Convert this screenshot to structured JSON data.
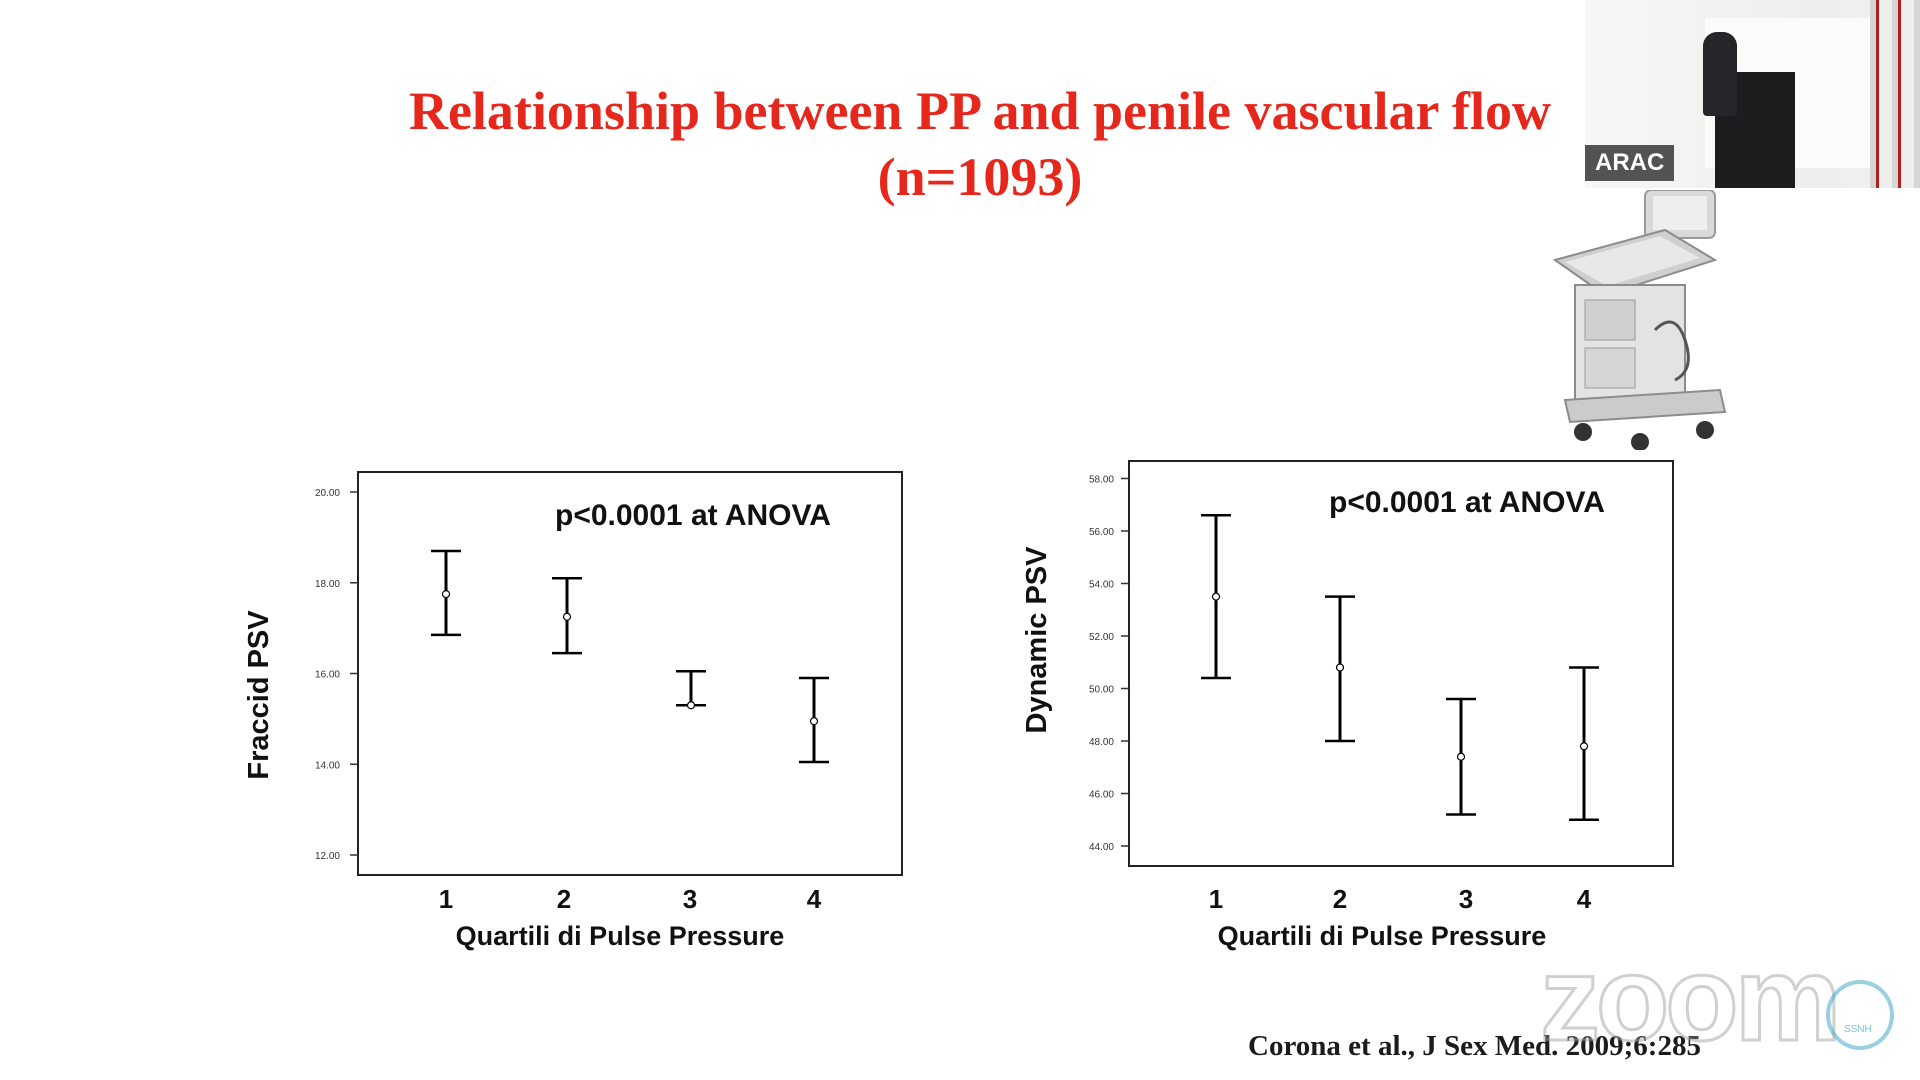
{
  "slide": {
    "title_line1": "Relationship between PP and penile vascular flow",
    "title_line2": "(n=1093)",
    "citation": "Corona et al.,  J Sex Med. 2009;6:285"
  },
  "video": {
    "participant_label": "ARAC"
  },
  "watermark": {
    "brand": "zoom",
    "badge_text": "SSNH"
  },
  "chart_data": [
    {
      "type": "errorbar",
      "title": "",
      "annotation": "p<0.0001 at ANOVA",
      "xlabel": "Quartili di Pulse Pressure",
      "ylabel": "Fraccid  PSV",
      "categories": [
        "1",
        "2",
        "3",
        "4"
      ],
      "ylim": [
        12,
        20
      ],
      "yticks": [
        12,
        14,
        16,
        18,
        20
      ],
      "ytick_labels": [
        "12.00",
        "14.00",
        "16.00",
        "18.00",
        "20.00"
      ],
      "mean": [
        17.75,
        17.25,
        15.3,
        14.95
      ],
      "lower": [
        16.85,
        16.45,
        15.3,
        14.05
      ],
      "upper": [
        18.7,
        18.1,
        16.05,
        15.9
      ],
      "color": "#000000"
    },
    {
      "type": "errorbar",
      "title": "",
      "annotation": "p<0.0001 at ANOVA",
      "xlabel": "Quartili di Pulse Pressure",
      "ylabel": "Dynamic PSV",
      "categories": [
        "1",
        "2",
        "3",
        "4"
      ],
      "ylim": [
        44,
        68
      ],
      "yticks": [
        44,
        46,
        48,
        50,
        52,
        54,
        56,
        58
      ],
      "ytick_labels": [
        "44.00",
        "46.00",
        "48.00",
        "50.00",
        "52.00",
        "54.00",
        "56.00",
        "58.00"
      ],
      "mean": [
        53.5,
        50.8,
        47.4,
        47.8
      ],
      "lower": [
        50.4,
        48.0,
        45.2,
        45.0
      ],
      "upper": [
        56.6,
        53.5,
        49.6,
        50.8
      ],
      "color": "#000000"
    }
  ]
}
